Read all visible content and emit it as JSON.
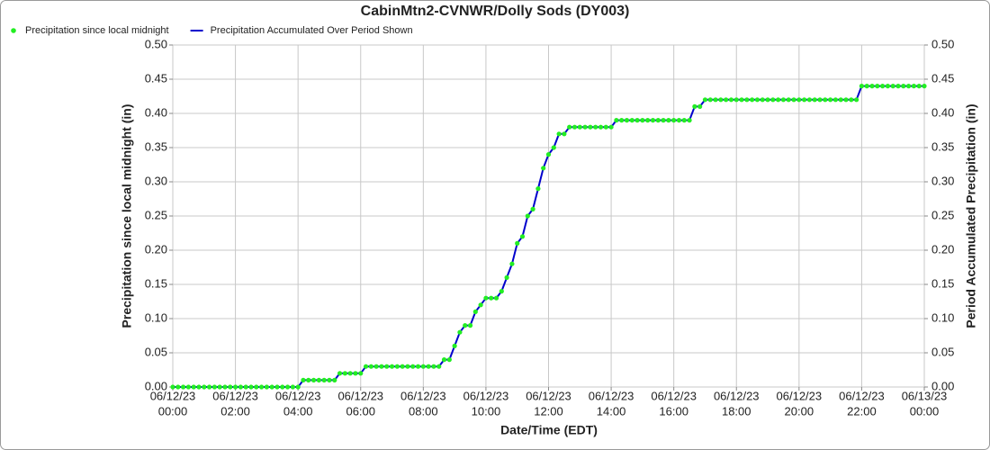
{
  "chart_data": {
    "type": "line",
    "title": "CabinMtn2-CVNWR/Dolly Sods (DY003)",
    "x_label": "Date/Time (EDT)",
    "y_label": "Precipitation since local midnight (in)",
    "y2_label": "Period Accumulated Precipitation (in)",
    "grid": true,
    "legend": "top-left",
    "xlim": [
      "06/12/23 00:00",
      "06/13/23 00:00"
    ],
    "xticks": [
      {
        "value": "06/12/23 00:00",
        "label": [
          "06/12/23",
          "00:00"
        ]
      },
      {
        "value": "06/12/23 02:00",
        "label": [
          "06/12/23",
          "02:00"
        ]
      },
      {
        "value": "06/12/23 04:00",
        "label": [
          "06/12/23",
          "04:00"
        ]
      },
      {
        "value": "06/12/23 06:00",
        "label": [
          "06/12/23",
          "06:00"
        ]
      },
      {
        "value": "06/12/23 08:00",
        "label": [
          "06/12/23",
          "08:00"
        ]
      },
      {
        "value": "06/12/23 10:00",
        "label": [
          "06/12/23",
          "10:00"
        ]
      },
      {
        "value": "06/12/23 12:00",
        "label": [
          "06/12/23",
          "12:00"
        ]
      },
      {
        "value": "06/12/23 14:00",
        "label": [
          "06/12/23",
          "14:00"
        ]
      },
      {
        "value": "06/12/23 16:00",
        "label": [
          "06/12/23",
          "16:00"
        ]
      },
      {
        "value": "06/12/23 18:00",
        "label": [
          "06/12/23",
          "18:00"
        ]
      },
      {
        "value": "06/12/23 20:00",
        "label": [
          "06/12/23",
          "20:00"
        ]
      },
      {
        "value": "06/12/23 22:00",
        "label": [
          "06/12/23",
          "22:00"
        ]
      },
      {
        "value": "06/13/23 00:00",
        "label": [
          "06/13/23",
          "00:00"
        ]
      }
    ],
    "ylim": [
      0,
      0.5
    ],
    "yticks": [
      {
        "value": 0,
        "label": "0.00"
      },
      {
        "value": 0.05,
        "label": "0.05"
      },
      {
        "value": 0.1,
        "label": "0.10"
      },
      {
        "value": 0.15,
        "label": "0.15"
      },
      {
        "value": 0.2,
        "label": "0.20"
      },
      {
        "value": 0.25,
        "label": "0.25"
      },
      {
        "value": 0.3,
        "label": "0.30"
      },
      {
        "value": 0.35,
        "label": "0.35"
      },
      {
        "value": 0.4,
        "label": "0.40"
      },
      {
        "value": 0.45,
        "label": "0.45"
      },
      {
        "value": 0.5,
        "label": "0.50"
      }
    ],
    "y2lim": [
      0,
      0.5
    ],
    "y2ticks": [
      {
        "value": 0,
        "label": "0.00"
      },
      {
        "value": 0.05,
        "label": "0.05"
      },
      {
        "value": 0.1,
        "label": "0.10"
      },
      {
        "value": 0.15,
        "label": "0.15"
      },
      {
        "value": 0.2,
        "label": "0.20"
      },
      {
        "value": 0.25,
        "label": "0.25"
      },
      {
        "value": 0.3,
        "label": "0.30"
      },
      {
        "value": 0.35,
        "label": "0.35"
      },
      {
        "value": 0.4,
        "label": "0.40"
      },
      {
        "value": 0.45,
        "label": "0.45"
      },
      {
        "value": 0.5,
        "label": "0.50"
      }
    ],
    "x": [
      "06/12/23 00:00",
      "06/12/23 00:10",
      "06/12/23 00:20",
      "06/12/23 00:30",
      "06/12/23 00:40",
      "06/12/23 00:50",
      "06/12/23 01:00",
      "06/12/23 01:10",
      "06/12/23 01:20",
      "06/12/23 01:30",
      "06/12/23 01:40",
      "06/12/23 01:50",
      "06/12/23 02:00",
      "06/12/23 02:10",
      "06/12/23 02:20",
      "06/12/23 02:30",
      "06/12/23 02:40",
      "06/12/23 02:50",
      "06/12/23 03:00",
      "06/12/23 03:10",
      "06/12/23 03:20",
      "06/12/23 03:30",
      "06/12/23 03:40",
      "06/12/23 03:50",
      "06/12/23 04:00",
      "06/12/23 04:10",
      "06/12/23 04:20",
      "06/12/23 04:30",
      "06/12/23 04:40",
      "06/12/23 04:50",
      "06/12/23 05:00",
      "06/12/23 05:10",
      "06/12/23 05:20",
      "06/12/23 05:30",
      "06/12/23 05:40",
      "06/12/23 05:50",
      "06/12/23 06:00",
      "06/12/23 06:10",
      "06/12/23 06:20",
      "06/12/23 06:30",
      "06/12/23 06:40",
      "06/12/23 06:50",
      "06/12/23 07:00",
      "06/12/23 07:10",
      "06/12/23 07:20",
      "06/12/23 07:30",
      "06/12/23 07:40",
      "06/12/23 07:50",
      "06/12/23 08:00",
      "06/12/23 08:10",
      "06/12/23 08:20",
      "06/12/23 08:30",
      "06/12/23 08:40",
      "06/12/23 08:50",
      "06/12/23 09:00",
      "06/12/23 09:10",
      "06/12/23 09:20",
      "06/12/23 09:30",
      "06/12/23 09:40",
      "06/12/23 09:50",
      "06/12/23 10:00",
      "06/12/23 10:10",
      "06/12/23 10:20",
      "06/12/23 10:30",
      "06/12/23 10:40",
      "06/12/23 10:50",
      "06/12/23 11:00",
      "06/12/23 11:10",
      "06/12/23 11:20",
      "06/12/23 11:30",
      "06/12/23 11:40",
      "06/12/23 11:50",
      "06/12/23 12:00",
      "06/12/23 12:10",
      "06/12/23 12:20",
      "06/12/23 12:30",
      "06/12/23 12:40",
      "06/12/23 12:50",
      "06/12/23 13:00",
      "06/12/23 13:10",
      "06/12/23 13:20",
      "06/12/23 13:30",
      "06/12/23 13:40",
      "06/12/23 13:50",
      "06/12/23 14:00",
      "06/12/23 14:10",
      "06/12/23 14:20",
      "06/12/23 14:30",
      "06/12/23 14:40",
      "06/12/23 14:50",
      "06/12/23 15:00",
      "06/12/23 15:10",
      "06/12/23 15:20",
      "06/12/23 15:30",
      "06/12/23 15:40",
      "06/12/23 15:50",
      "06/12/23 16:00",
      "06/12/23 16:10",
      "06/12/23 16:20",
      "06/12/23 16:30",
      "06/12/23 16:40",
      "06/12/23 16:50",
      "06/12/23 17:00",
      "06/12/23 17:10",
      "06/12/23 17:20",
      "06/12/23 17:30",
      "06/12/23 17:40",
      "06/12/23 17:50",
      "06/12/23 18:00",
      "06/12/23 18:10",
      "06/12/23 18:20",
      "06/12/23 18:30",
      "06/12/23 18:40",
      "06/12/23 18:50",
      "06/12/23 19:00",
      "06/12/23 19:10",
      "06/12/23 19:20",
      "06/12/23 19:30",
      "06/12/23 19:40",
      "06/12/23 19:50",
      "06/12/23 20:00",
      "06/12/23 20:10",
      "06/12/23 20:20",
      "06/12/23 20:30",
      "06/12/23 20:40",
      "06/12/23 20:50",
      "06/12/23 21:00",
      "06/12/23 21:10",
      "06/12/23 21:20",
      "06/12/23 21:30",
      "06/12/23 21:40",
      "06/12/23 21:50",
      "06/12/23 22:00",
      "06/12/23 22:10",
      "06/12/23 22:20",
      "06/12/23 22:30",
      "06/12/23 22:40",
      "06/12/23 22:50",
      "06/12/23 23:00",
      "06/12/23 23:10",
      "06/12/23 23:20",
      "06/12/23 23:30",
      "06/12/23 23:40",
      "06/12/23 23:50",
      "06/13/23 00:00"
    ],
    "series": [
      {
        "name": "Precipitation since local midnight",
        "color": "#22ee22",
        "marker": "dot",
        "values": [
          0,
          0,
          0,
          0,
          0,
          0,
          0,
          0,
          0,
          0,
          0,
          0,
          0,
          0,
          0,
          0,
          0,
          0,
          0,
          0,
          0,
          0,
          0,
          0,
          0,
          0.01,
          0.01,
          0.01,
          0.01,
          0.01,
          0.01,
          0.01,
          0.02,
          0.02,
          0.02,
          0.02,
          0.02,
          0.03,
          0.03,
          0.03,
          0.03,
          0.03,
          0.03,
          0.03,
          0.03,
          0.03,
          0.03,
          0.03,
          0.03,
          0.03,
          0.03,
          0.03,
          0.04,
          0.04,
          0.06,
          0.08,
          0.09,
          0.09,
          0.11,
          0.12,
          0.13,
          0.13,
          0.13,
          0.14,
          0.16,
          0.18,
          0.21,
          0.22,
          0.25,
          0.26,
          0.29,
          0.32,
          0.34,
          0.35,
          0.37,
          0.37,
          0.38,
          0.38,
          0.38,
          0.38,
          0.38,
          0.38,
          0.38,
          0.38,
          0.38,
          0.39,
          0.39,
          0.39,
          0.39,
          0.39,
          0.39,
          0.39,
          0.39,
          0.39,
          0.39,
          0.39,
          0.39,
          0.39,
          0.39,
          0.39,
          0.41,
          0.41,
          0.42,
          0.42,
          0.42,
          0.42,
          0.42,
          0.42,
          0.42,
          0.42,
          0.42,
          0.42,
          0.42,
          0.42,
          0.42,
          0.42,
          0.42,
          0.42,
          0.42,
          0.42,
          0.42,
          0.42,
          0.42,
          0.42,
          0.42,
          0.42,
          0.42,
          0.42,
          0.42,
          0.42,
          0.42,
          0.42,
          0.44,
          0.44,
          0.44,
          0.44,
          0.44,
          0.44,
          0.44,
          0.44,
          0.44,
          0.44,
          0.44,
          0.44,
          0.44
        ]
      },
      {
        "name": "Precipitation Accumulated Over Period Shown",
        "color": "#0000cc",
        "marker": "line",
        "axis": "y2",
        "values": [
          0,
          0,
          0,
          0,
          0,
          0,
          0,
          0,
          0,
          0,
          0,
          0,
          0,
          0,
          0,
          0,
          0,
          0,
          0,
          0,
          0,
          0,
          0,
          0,
          0,
          0.01,
          0.01,
          0.01,
          0.01,
          0.01,
          0.01,
          0.01,
          0.02,
          0.02,
          0.02,
          0.02,
          0.02,
          0.03,
          0.03,
          0.03,
          0.03,
          0.03,
          0.03,
          0.03,
          0.03,
          0.03,
          0.03,
          0.03,
          0.03,
          0.03,
          0.03,
          0.03,
          0.04,
          0.04,
          0.06,
          0.08,
          0.09,
          0.09,
          0.11,
          0.12,
          0.13,
          0.13,
          0.13,
          0.14,
          0.16,
          0.18,
          0.21,
          0.22,
          0.25,
          0.26,
          0.29,
          0.32,
          0.34,
          0.35,
          0.37,
          0.37,
          0.38,
          0.38,
          0.38,
          0.38,
          0.38,
          0.38,
          0.38,
          0.38,
          0.38,
          0.39,
          0.39,
          0.39,
          0.39,
          0.39,
          0.39,
          0.39,
          0.39,
          0.39,
          0.39,
          0.39,
          0.39,
          0.39,
          0.39,
          0.39,
          0.41,
          0.41,
          0.42,
          0.42,
          0.42,
          0.42,
          0.42,
          0.42,
          0.42,
          0.42,
          0.42,
          0.42,
          0.42,
          0.42,
          0.42,
          0.42,
          0.42,
          0.42,
          0.42,
          0.42,
          0.42,
          0.42,
          0.42,
          0.42,
          0.42,
          0.42,
          0.42,
          0.42,
          0.42,
          0.42,
          0.42,
          0.42,
          0.44,
          0.44,
          0.44,
          0.44,
          0.44,
          0.44,
          0.44,
          0.44,
          0.44,
          0.44,
          0.44,
          0.44,
          0.44
        ]
      }
    ]
  }
}
